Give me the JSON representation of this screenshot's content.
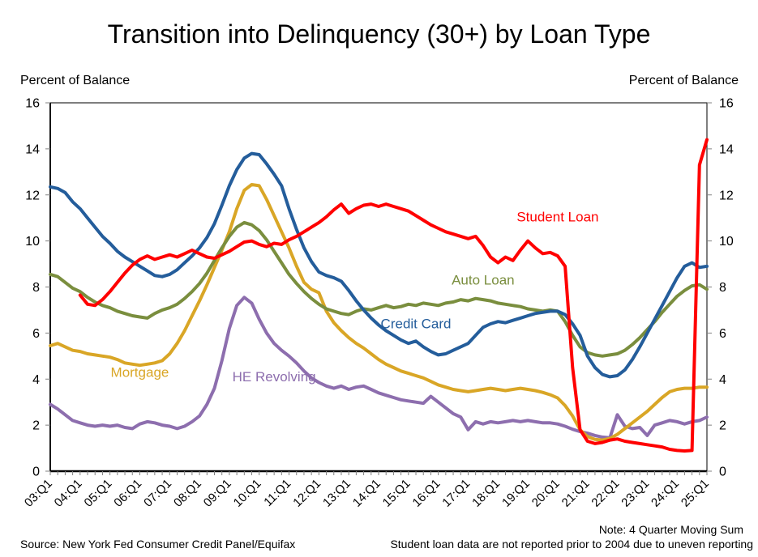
{
  "page": {
    "title": "Transition into Delinquency (30+) by Loan Type",
    "ylabel_left": "Percent of Balance",
    "ylabel_right": "Percent of Balance",
    "source": "Source: New York Fed Consumer Credit Panel/Equifax",
    "note1": "Note: 4 Quarter Moving Sum",
    "note2": "Student loan data are not reported prior to 2004 due to uneven reporting"
  },
  "chart_data": {
    "type": "line",
    "title": "Transition into Delinquency (30+) by Loan Type",
    "xlabel": "",
    "ylabel": "Percent of Balance",
    "ylim": [
      0,
      16
    ],
    "yticks": [
      0,
      2,
      4,
      6,
      8,
      10,
      12,
      14,
      16
    ],
    "grid": false,
    "legend_position": "inline-annotations",
    "x_tick_labels": [
      "03:Q1",
      "04:Q1",
      "05:Q1",
      "06:Q1",
      "07:Q1",
      "08:Q1",
      "09:Q1",
      "10:Q1",
      "11:Q1",
      "12:Q1",
      "13:Q1",
      "14:Q1",
      "15:Q1",
      "16:Q1",
      "17:Q1",
      "18:Q1",
      "19:Q1",
      "20:Q1",
      "21:Q1",
      "22:Q1",
      "23:Q1",
      "24:Q1",
      "25:Q1"
    ],
    "quarters_per_tick": 4,
    "x_start": "03:Q1",
    "x_end": "25:Q1",
    "series": [
      {
        "name": "HE Revolving",
        "color": "#8D6EAE",
        "label": {
          "text": "HE Revolving",
          "xi": 30,
          "y": 3.9
        },
        "values": [
          2.9,
          2.7,
          2.45,
          2.2,
          2.1,
          2.0,
          1.95,
          2.0,
          1.95,
          2.0,
          1.9,
          1.85,
          2.05,
          2.15,
          2.1,
          2.0,
          1.95,
          1.85,
          1.95,
          2.15,
          2.4,
          2.9,
          3.6,
          4.8,
          6.2,
          7.2,
          7.55,
          7.3,
          6.6,
          6.0,
          5.55,
          5.25,
          5.0,
          4.7,
          4.35,
          4.05,
          3.85,
          3.7,
          3.6,
          3.7,
          3.55,
          3.65,
          3.7,
          3.55,
          3.4,
          3.3,
          3.2,
          3.1,
          3.05,
          3.0,
          2.95,
          3.25,
          3.0,
          2.75,
          2.5,
          2.35,
          1.8,
          2.15,
          2.05,
          2.15,
          2.1,
          2.15,
          2.2,
          2.15,
          2.2,
          2.15,
          2.1,
          2.1,
          2.05,
          1.95,
          1.82,
          1.72,
          1.65,
          1.55,
          1.48,
          1.45,
          2.45,
          1.95,
          1.85,
          1.9,
          1.55,
          2.0,
          2.1,
          2.2,
          2.15,
          2.05,
          2.15,
          2.2,
          2.35
        ]
      },
      {
        "name": "Mortgage",
        "color": "#D9A626",
        "label": {
          "text": "Mortgage",
          "xi": 12,
          "y": 4.1
        },
        "values": [
          5.45,
          5.55,
          5.4,
          5.25,
          5.2,
          5.1,
          5.05,
          5.0,
          4.95,
          4.85,
          4.7,
          4.65,
          4.6,
          4.65,
          4.7,
          4.8,
          5.1,
          5.55,
          6.1,
          6.75,
          7.4,
          8.1,
          8.85,
          9.6,
          10.4,
          11.4,
          12.2,
          12.45,
          12.4,
          11.8,
          11.1,
          10.4,
          9.7,
          8.9,
          8.2,
          7.9,
          7.75,
          6.95,
          6.45,
          6.1,
          5.8,
          5.55,
          5.35,
          5.1,
          4.85,
          4.65,
          4.5,
          4.35,
          4.25,
          4.15,
          4.05,
          3.9,
          3.75,
          3.65,
          3.55,
          3.5,
          3.45,
          3.5,
          3.55,
          3.6,
          3.55,
          3.5,
          3.55,
          3.6,
          3.55,
          3.5,
          3.42,
          3.32,
          3.18,
          2.85,
          2.4,
          1.8,
          1.5,
          1.38,
          1.35,
          1.42,
          1.6,
          1.85,
          2.1,
          2.35,
          2.6,
          2.9,
          3.2,
          3.45,
          3.55,
          3.6,
          3.6,
          3.65,
          3.65
        ]
      },
      {
        "name": "Auto Loan",
        "color": "#7A8E3E",
        "label": {
          "text": "Auto Loan",
          "xi": 58,
          "y": 8.1
        },
        "values": [
          8.55,
          8.45,
          8.2,
          7.95,
          7.8,
          7.55,
          7.35,
          7.2,
          7.1,
          6.95,
          6.85,
          6.75,
          6.7,
          6.65,
          6.85,
          7.0,
          7.1,
          7.25,
          7.5,
          7.8,
          8.15,
          8.6,
          9.15,
          9.7,
          10.2,
          10.6,
          10.8,
          10.7,
          10.45,
          10.05,
          9.55,
          9.05,
          8.55,
          8.15,
          7.8,
          7.5,
          7.25,
          7.05,
          6.95,
          6.85,
          6.8,
          6.95,
          7.05,
          7.0,
          7.1,
          7.2,
          7.1,
          7.15,
          7.25,
          7.2,
          7.3,
          7.25,
          7.2,
          7.3,
          7.35,
          7.45,
          7.4,
          7.5,
          7.45,
          7.4,
          7.3,
          7.25,
          7.2,
          7.15,
          7.05,
          7.0,
          6.95,
          7.0,
          6.95,
          6.5,
          5.9,
          5.4,
          5.15,
          5.05,
          5.0,
          5.05,
          5.1,
          5.25,
          5.5,
          5.8,
          6.15,
          6.5,
          6.9,
          7.25,
          7.6,
          7.85,
          8.05,
          8.1,
          7.9
        ]
      },
      {
        "name": "Credit Card",
        "color": "#245D9B",
        "label": {
          "text": "Credit Card",
          "xi": 49,
          "y": 6.2
        },
        "values": [
          12.35,
          12.28,
          12.1,
          11.7,
          11.4,
          11.0,
          10.6,
          10.2,
          9.9,
          9.55,
          9.3,
          9.1,
          8.9,
          8.7,
          8.5,
          8.45,
          8.55,
          8.75,
          9.05,
          9.35,
          9.7,
          10.15,
          10.75,
          11.55,
          12.4,
          13.1,
          13.6,
          13.8,
          13.75,
          13.35,
          12.9,
          12.4,
          11.4,
          10.5,
          9.7,
          9.1,
          8.65,
          8.5,
          8.4,
          8.25,
          7.85,
          7.4,
          7.0,
          6.65,
          6.35,
          6.1,
          5.9,
          5.7,
          5.55,
          5.65,
          5.4,
          5.2,
          5.05,
          5.1,
          5.25,
          5.4,
          5.55,
          5.9,
          6.25,
          6.4,
          6.5,
          6.45,
          6.55,
          6.65,
          6.75,
          6.85,
          6.9,
          6.95,
          6.95,
          6.8,
          6.4,
          5.9,
          5.0,
          4.5,
          4.2,
          4.1,
          4.15,
          4.4,
          4.85,
          5.4,
          6.0,
          6.6,
          7.2,
          7.8,
          8.4,
          8.9,
          9.05,
          8.85,
          8.9
        ]
      },
      {
        "name": "Student Loan",
        "color": "#FF0000",
        "label": {
          "text": "Student Loan",
          "xi": 68,
          "y": 10.85
        },
        "values": [
          null,
          null,
          null,
          null,
          7.65,
          7.25,
          7.2,
          7.45,
          7.8,
          8.2,
          8.6,
          8.95,
          9.2,
          9.35,
          9.2,
          9.3,
          9.4,
          9.3,
          9.45,
          9.6,
          9.45,
          9.3,
          9.25,
          9.4,
          9.55,
          9.75,
          9.95,
          10.0,
          9.85,
          9.75,
          9.9,
          9.85,
          10.05,
          10.2,
          10.4,
          10.6,
          10.8,
          11.05,
          11.35,
          11.6,
          11.2,
          11.4,
          11.55,
          11.6,
          11.5,
          11.6,
          11.5,
          11.4,
          11.3,
          11.1,
          10.9,
          10.7,
          10.55,
          10.4,
          10.3,
          10.2,
          10.1,
          10.2,
          9.8,
          9.3,
          9.05,
          9.3,
          9.15,
          9.6,
          10.0,
          9.7,
          9.45,
          9.5,
          9.35,
          8.9,
          4.5,
          1.8,
          1.3,
          1.2,
          1.25,
          1.35,
          1.4,
          1.3,
          1.25,
          1.2,
          1.15,
          1.1,
          1.05,
          0.95,
          0.9,
          0.88,
          0.9,
          13.3,
          14.4
        ]
      }
    ]
  }
}
